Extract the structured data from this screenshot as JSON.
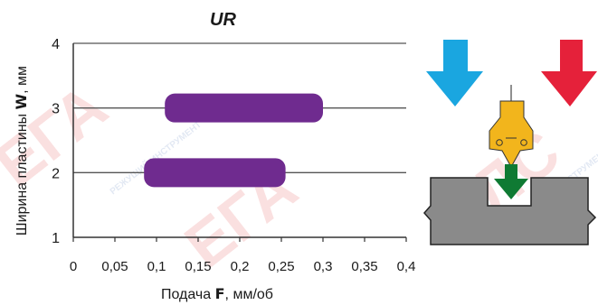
{
  "chart_data": {
    "type": "bar",
    "title": "UR",
    "ylabel_text": "Ширина пластины ",
    "ylabel_symbol": "W",
    "ylabel_unit": ", мм",
    "xlabel_text": "Подача ",
    "xlabel_symbol": "F",
    "xlabel_unit": ", мм/об",
    "xlim": [
      0,
      0.4
    ],
    "ylim": [
      1,
      4
    ],
    "xticks": [
      "0",
      "0,05",
      "0,1",
      "0,15",
      "0,2",
      "0,25",
      "0,3",
      "0,35",
      "0,4"
    ],
    "yticks": [
      "1",
      "2",
      "3",
      "4"
    ],
    "grid": "horizontal",
    "bars": [
      {
        "y": 3,
        "x_start": 0.11,
        "x_end": 0.3
      },
      {
        "y": 2,
        "x_start": 0.085,
        "x_end": 0.255
      }
    ],
    "bar_color": "#6f2b8f"
  },
  "diagram": {
    "arrow_left_color": "#1aa6e0",
    "arrow_right_color": "#e5213a",
    "arrow_down_color": "#0f7a33",
    "insert_color": "#f2b51c",
    "workpiece_color": "#8a8a8a"
  },
  "watermark": {
    "big_text": "ЕГА ЛС",
    "small_text": "РЕЖУЩИЙ ИНСТРУМЕНТ"
  }
}
